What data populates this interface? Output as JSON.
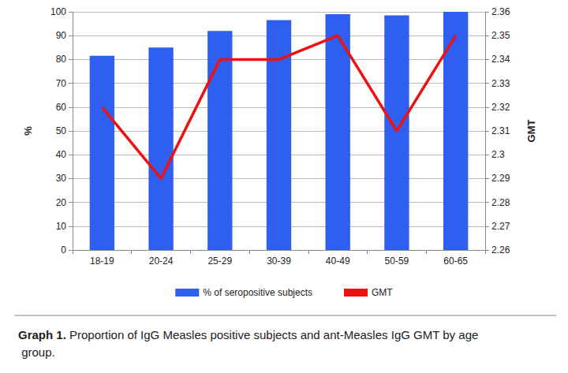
{
  "chart_data": {
    "type": "bar",
    "title": "Graph 1. Proportion of IgG Measles positive subjects and ant-Measles IgG GMT by age group.",
    "categories": [
      "18-19",
      "20-24",
      "25-29",
      "30-39",
      "40-49",
      "50-59",
      "60-65"
    ],
    "y_label": "%",
    "y2_label": "GMT",
    "series": [
      {
        "name": "% of seropositive subjects",
        "type": "bar",
        "color": "#2f5ff0",
        "values": [
          81.5,
          85,
          92,
          96.5,
          99,
          98.5,
          100
        ]
      },
      {
        "name": "GMT",
        "type": "line",
        "color": "#ee1111",
        "marker": "none",
        "axis": "y2",
        "values": [
          2.32,
          2.29,
          2.34,
          2.34,
          2.35,
          2.31,
          2.35
        ]
      }
    ],
    "ylim": [
      0,
      100
    ],
    "yticks": [
      0,
      10,
      20,
      30,
      40,
      50,
      60,
      70,
      80,
      90,
      100
    ],
    "y2lim": [
      2.26,
      2.36
    ],
    "y2ticks": [
      2.26,
      2.27,
      2.28,
      2.29,
      2.3,
      2.31,
      2.32,
      2.33,
      2.34,
      2.35,
      2.36
    ],
    "grid": true,
    "legend": "bottom"
  }
}
